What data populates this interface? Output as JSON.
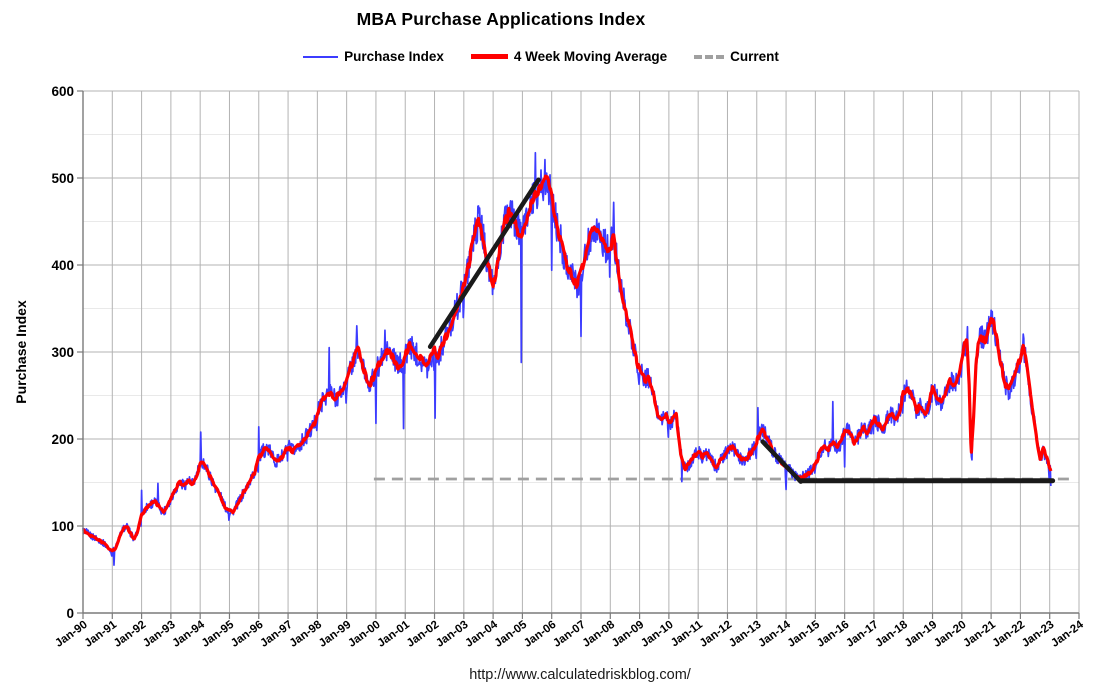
{
  "page": {
    "footer_url": "http://www.calculatedriskblog.com/"
  },
  "chart_data": {
    "type": "line",
    "title": "MBA Purchase Applications Index",
    "ylabel": "Purchase Index",
    "xlabel": "",
    "ylim": [
      0,
      600
    ],
    "ytick_step": 100,
    "yminor_step": 50,
    "xlim_years": [
      1990,
      2024
    ],
    "grid": true,
    "legend_position": "top",
    "xtick_labels": [
      "Jan-90",
      "Jan-91",
      "Jan-92",
      "Jan-93",
      "Jan-94",
      "Jan-95",
      "Jan-96",
      "Jan-97",
      "Jan-98",
      "Jan-99",
      "Jan-00",
      "Jan-01",
      "Jan-02",
      "Jan-03",
      "Jan-04",
      "Jan-05",
      "Jan-06",
      "Jan-07",
      "Jan-08",
      "Jan-09",
      "Jan-10",
      "Jan-11",
      "Jan-12",
      "Jan-13",
      "Jan-14",
      "Jan-15",
      "Jan-16",
      "Jan-17",
      "Jan-18",
      "Jan-19",
      "Jan-20",
      "Jan-21",
      "Jan-22",
      "Jan-23",
      "Jan-24"
    ],
    "series": [
      {
        "name": "Purchase Index",
        "color": "#3c3cff",
        "width": 1.7,
        "derived_from": "4 Week Moving Average",
        "noise": {
          "weekly_pct": 4.5,
          "year_end_dip_pct": 9
        },
        "spikes": [
          [
            1991.05,
            55
          ],
          [
            1992.0,
            141
          ],
          [
            1992.55,
            149
          ],
          [
            1994.02,
            208
          ],
          [
            1996.0,
            214
          ],
          [
            1998.4,
            305
          ],
          [
            1999.35,
            330
          ],
          [
            2000.0,
            218
          ],
          [
            2000.3,
            325
          ],
          [
            2000.95,
            212
          ],
          [
            2002.02,
            224
          ],
          [
            2004.97,
            288
          ],
          [
            2005.45,
            529
          ],
          [
            2006.0,
            394
          ],
          [
            2007.0,
            318
          ],
          [
            2008.12,
            472
          ],
          [
            2010.45,
            151
          ],
          [
            2013.04,
            236
          ],
          [
            2014.0,
            142
          ],
          [
            2015.6,
            243
          ],
          [
            2016.0,
            168
          ],
          [
            2020.2,
            329
          ],
          [
            2020.34,
            176
          ],
          [
            2021.0,
            348
          ],
          [
            2023.06,
            146
          ]
        ]
      },
      {
        "name": "4 Week Moving Average",
        "color": "#ff0000",
        "width": 3.2,
        "wiggle_pct": 1.3,
        "points": [
          [
            1990.0,
            95
          ],
          [
            1990.15,
            92
          ],
          [
            1990.3,
            88
          ],
          [
            1990.45,
            86
          ],
          [
            1990.6,
            83
          ],
          [
            1990.75,
            79
          ],
          [
            1990.9,
            73
          ],
          [
            1991.0,
            71
          ],
          [
            1991.1,
            74
          ],
          [
            1991.2,
            83
          ],
          [
            1991.3,
            92
          ],
          [
            1991.4,
            98
          ],
          [
            1991.5,
            99
          ],
          [
            1991.6,
            93
          ],
          [
            1991.75,
            85
          ],
          [
            1991.85,
            92
          ],
          [
            1992.0,
            112
          ],
          [
            1992.15,
            121
          ],
          [
            1992.3,
            125
          ],
          [
            1992.45,
            128
          ],
          [
            1992.6,
            122
          ],
          [
            1992.75,
            116
          ],
          [
            1992.9,
            124
          ],
          [
            1993.0,
            133
          ],
          [
            1993.15,
            142
          ],
          [
            1993.3,
            150
          ],
          [
            1993.45,
            147
          ],
          [
            1993.6,
            152
          ],
          [
            1993.75,
            148
          ],
          [
            1993.9,
            160
          ],
          [
            1994.0,
            172
          ],
          [
            1994.1,
            174
          ],
          [
            1994.25,
            164
          ],
          [
            1994.4,
            152
          ],
          [
            1994.55,
            143
          ],
          [
            1994.7,
            134
          ],
          [
            1994.85,
            122
          ],
          [
            1995.0,
            118
          ],
          [
            1995.1,
            116
          ],
          [
            1995.25,
            124
          ],
          [
            1995.4,
            133
          ],
          [
            1995.55,
            142
          ],
          [
            1995.7,
            152
          ],
          [
            1995.85,
            160
          ],
          [
            1996.0,
            178
          ],
          [
            1996.15,
            186
          ],
          [
            1996.3,
            190
          ],
          [
            1996.45,
            181
          ],
          [
            1996.6,
            174
          ],
          [
            1996.75,
            178
          ],
          [
            1996.9,
            185
          ],
          [
            1997.0,
            191
          ],
          [
            1997.15,
            186
          ],
          [
            1997.3,
            190
          ],
          [
            1997.45,
            196
          ],
          [
            1997.6,
            202
          ],
          [
            1997.75,
            209
          ],
          [
            1997.9,
            218
          ],
          [
            1998.0,
            230
          ],
          [
            1998.15,
            242
          ],
          [
            1998.3,
            251
          ],
          [
            1998.45,
            254
          ],
          [
            1998.6,
            247
          ],
          [
            1998.75,
            251
          ],
          [
            1998.9,
            258
          ],
          [
            1999.0,
            268
          ],
          [
            1999.15,
            283
          ],
          [
            1999.3,
            297
          ],
          [
            1999.4,
            303
          ],
          [
            1999.5,
            289
          ],
          [
            1999.65,
            273
          ],
          [
            1999.8,
            263
          ],
          [
            1999.9,
            269
          ],
          [
            2000.0,
            278
          ],
          [
            2000.15,
            289
          ],
          [
            2000.3,
            299
          ],
          [
            2000.45,
            303
          ],
          [
            2000.6,
            292
          ],
          [
            2000.75,
            284
          ],
          [
            2000.9,
            288
          ],
          [
            2001.0,
            297
          ],
          [
            2001.15,
            307
          ],
          [
            2001.3,
            302
          ],
          [
            2001.45,
            295
          ],
          [
            2001.6,
            289
          ],
          [
            2001.75,
            282
          ],
          [
            2001.85,
            292
          ],
          [
            2002.0,
            302
          ],
          [
            2002.1,
            293
          ],
          [
            2002.25,
            306
          ],
          [
            2002.4,
            318
          ],
          [
            2002.55,
            332
          ],
          [
            2002.7,
            346
          ],
          [
            2002.85,
            358
          ],
          [
            2003.0,
            377
          ],
          [
            2003.15,
            398
          ],
          [
            2003.3,
            424
          ],
          [
            2003.45,
            446
          ],
          [
            2003.55,
            452
          ],
          [
            2003.7,
            424
          ],
          [
            2003.85,
            395
          ],
          [
            2004.0,
            376
          ],
          [
            2004.1,
            392
          ],
          [
            2004.25,
            424
          ],
          [
            2004.4,
            448
          ],
          [
            2004.55,
            461
          ],
          [
            2004.7,
            451
          ],
          [
            2004.85,
            440
          ],
          [
            2004.97,
            436
          ],
          [
            2005.1,
            451
          ],
          [
            2005.25,
            466
          ],
          [
            2005.4,
            478
          ],
          [
            2005.55,
            487
          ],
          [
            2005.7,
            496
          ],
          [
            2005.8,
            500
          ],
          [
            2005.9,
            491
          ],
          [
            2006.0,
            476
          ],
          [
            2006.1,
            457
          ],
          [
            2006.25,
            436
          ],
          [
            2006.4,
            415
          ],
          [
            2006.55,
            398
          ],
          [
            2006.7,
            387
          ],
          [
            2006.85,
            375
          ],
          [
            2007.0,
            391
          ],
          [
            2007.15,
            412
          ],
          [
            2007.3,
            431
          ],
          [
            2007.45,
            446
          ],
          [
            2007.6,
            438
          ],
          [
            2007.75,
            426
          ],
          [
            2007.9,
            419
          ],
          [
            2008.0,
            420
          ],
          [
            2008.1,
            433
          ],
          [
            2008.2,
            410
          ],
          [
            2008.35,
            377
          ],
          [
            2008.5,
            351
          ],
          [
            2008.65,
            329
          ],
          [
            2008.8,
            305
          ],
          [
            2008.95,
            284
          ],
          [
            2009.05,
            276
          ],
          [
            2009.2,
            268
          ],
          [
            2009.3,
            271
          ],
          [
            2009.45,
            253
          ],
          [
            2009.6,
            231
          ],
          [
            2009.75,
            223
          ],
          [
            2009.9,
            227
          ],
          [
            2010.0,
            217
          ],
          [
            2010.1,
            221
          ],
          [
            2010.25,
            227
          ],
          [
            2010.4,
            185
          ],
          [
            2010.55,
            166
          ],
          [
            2010.7,
            172
          ],
          [
            2010.85,
            180
          ],
          [
            2011.0,
            186
          ],
          [
            2011.15,
            179
          ],
          [
            2011.3,
            184
          ],
          [
            2011.45,
            175
          ],
          [
            2011.6,
            168
          ],
          [
            2011.75,
            175
          ],
          [
            2011.9,
            181
          ],
          [
            2012.0,
            186
          ],
          [
            2012.15,
            191
          ],
          [
            2012.3,
            184
          ],
          [
            2012.45,
            178
          ],
          [
            2012.6,
            176
          ],
          [
            2012.75,
            182
          ],
          [
            2012.9,
            190
          ],
          [
            2013.0,
            197
          ],
          [
            2013.1,
            206
          ],
          [
            2013.2,
            210
          ],
          [
            2013.35,
            201
          ],
          [
            2013.5,
            190
          ],
          [
            2013.65,
            181
          ],
          [
            2013.8,
            174
          ],
          [
            2013.95,
            170
          ],
          [
            2014.1,
            165
          ],
          [
            2014.25,
            160
          ],
          [
            2014.4,
            157
          ],
          [
            2014.55,
            155
          ],
          [
            2014.7,
            158
          ],
          [
            2014.85,
            163
          ],
          [
            2015.0,
            170
          ],
          [
            2015.15,
            184
          ],
          [
            2015.3,
            193
          ],
          [
            2015.45,
            188
          ],
          [
            2015.6,
            195
          ],
          [
            2015.75,
            190
          ],
          [
            2015.9,
            198
          ],
          [
            2016.0,
            212
          ],
          [
            2016.2,
            208
          ],
          [
            2016.35,
            194
          ],
          [
            2016.5,
            205
          ],
          [
            2016.65,
            213
          ],
          [
            2016.8,
            207
          ],
          [
            2016.9,
            214
          ],
          [
            2017.0,
            225
          ],
          [
            2017.15,
            218
          ],
          [
            2017.3,
            212
          ],
          [
            2017.45,
            222
          ],
          [
            2017.6,
            228
          ],
          [
            2017.75,
            222
          ],
          [
            2017.9,
            235
          ],
          [
            2018.0,
            252
          ],
          [
            2018.15,
            258
          ],
          [
            2018.3,
            248
          ],
          [
            2018.45,
            233
          ],
          [
            2018.6,
            239
          ],
          [
            2018.75,
            230
          ],
          [
            2018.9,
            241
          ],
          [
            2019.0,
            262
          ],
          [
            2019.15,
            248
          ],
          [
            2019.3,
            243
          ],
          [
            2019.45,
            255
          ],
          [
            2019.6,
            267
          ],
          [
            2019.75,
            261
          ],
          [
            2019.9,
            272
          ],
          [
            2020.0,
            288
          ],
          [
            2020.1,
            308
          ],
          [
            2020.17,
            314
          ],
          [
            2020.25,
            262
          ],
          [
            2020.32,
            182
          ],
          [
            2020.4,
            221
          ],
          [
            2020.48,
            281
          ],
          [
            2020.55,
            309
          ],
          [
            2020.65,
            318
          ],
          [
            2020.8,
            312
          ],
          [
            2020.9,
            323
          ],
          [
            2021.0,
            338
          ],
          [
            2021.1,
            330
          ],
          [
            2021.2,
            315
          ],
          [
            2021.3,
            293
          ],
          [
            2021.4,
            276
          ],
          [
            2021.5,
            262
          ],
          [
            2021.6,
            255
          ],
          [
            2021.7,
            264
          ],
          [
            2021.8,
            272
          ],
          [
            2021.9,
            283
          ],
          [
            2022.0,
            295
          ],
          [
            2022.1,
            308
          ],
          [
            2022.2,
            288
          ],
          [
            2022.3,
            261
          ],
          [
            2022.4,
            236
          ],
          [
            2022.5,
            214
          ],
          [
            2022.6,
            191
          ],
          [
            2022.68,
            177
          ],
          [
            2022.78,
            189
          ],
          [
            2022.88,
            180
          ],
          [
            2022.96,
            171
          ],
          [
            2023.05,
            160
          ]
        ]
      },
      {
        "name": "Current",
        "color": "#a0a0a0",
        "width": 2.8,
        "style": "dashed",
        "value": 154,
        "x_from": 1999.93,
        "x_to": 2023.8
      }
    ],
    "annotations": [
      {
        "type": "line",
        "from": [
          2001.85,
          306
        ],
        "to": [
          2005.55,
          498
        ],
        "color": "#1a1a1a",
        "width": 4.5
      },
      {
        "type": "line",
        "from": [
          2013.2,
          197
        ],
        "to": [
          2014.5,
          151
        ],
        "color": "#1a1a1a",
        "width": 4.5
      },
      {
        "type": "line",
        "from": [
          2014.55,
          152
        ],
        "to": [
          2023.1,
          152
        ],
        "color": "#1a1a1a",
        "width": 5
      }
    ],
    "colors": {
      "grid_major": "#b3b3b3",
      "grid_minor": "#e9e9e9",
      "axis_spine": "#7a7a7a",
      "text": "#000000"
    }
  }
}
